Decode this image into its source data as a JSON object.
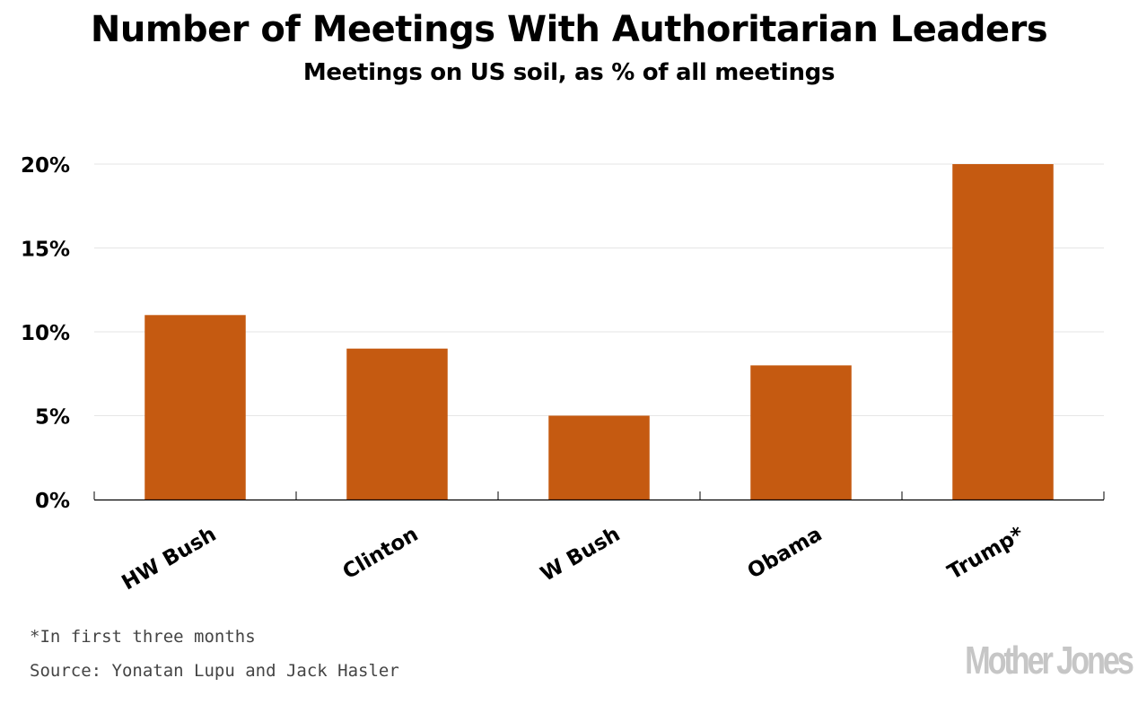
{
  "chart_data": {
    "type": "bar",
    "title": "Number of Meetings With Authoritarian Leaders",
    "subtitle": "Meetings on US soil, as % of all meetings",
    "categories": [
      "HW Bush",
      "Clinton",
      "W Bush",
      "Obama",
      "Trump*"
    ],
    "values": [
      11,
      9,
      5,
      8,
      20
    ],
    "unit": "%",
    "xlabel": "",
    "ylabel": "",
    "ylim": [
      0,
      20
    ],
    "yticks": [
      0,
      5,
      10,
      15,
      20
    ],
    "ytick_labels": [
      "0%",
      "5%",
      "10%",
      "15%",
      "20%"
    ],
    "grid": true,
    "legend": "none",
    "bar_color": "#c55a11",
    "gridline_color": "#e6e6e6",
    "annotations": {
      "footnote": "*In first three months",
      "source": "Source: Yonatan Lupu and Jack Hasler"
    }
  },
  "branding": {
    "logo_text": "Mother Jones",
    "logo_color": "#c6c6c6"
  }
}
